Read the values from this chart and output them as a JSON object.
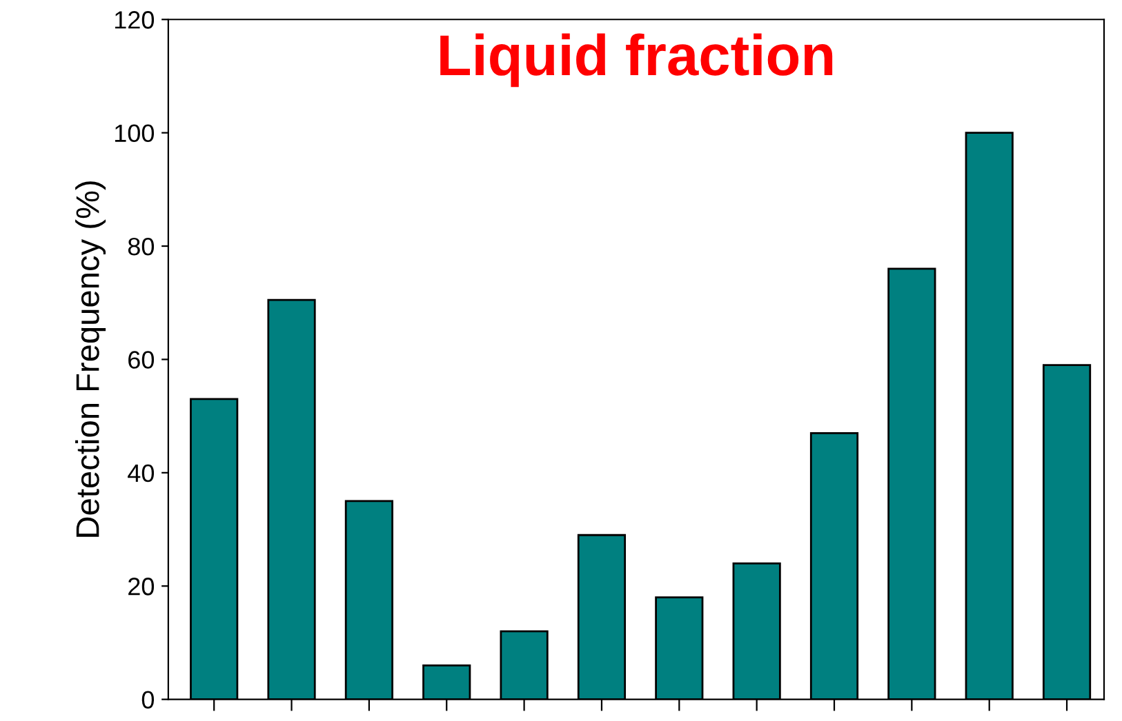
{
  "chart_data": {
    "type": "bar",
    "title": "Liquid fraction",
    "ylabel": "Detection Frequency (%)",
    "categories": [
      null,
      null,
      null,
      null,
      null,
      null,
      null,
      null,
      null,
      null,
      null,
      null
    ],
    "values": [
      53,
      70.5,
      35,
      6,
      12,
      29,
      18,
      24,
      47,
      76,
      100,
      59
    ],
    "color": "#008080",
    "ylim": [
      0,
      120
    ],
    "yticks": [
      0,
      20,
      40,
      60,
      80,
      100,
      120
    ],
    "grid": false
  }
}
